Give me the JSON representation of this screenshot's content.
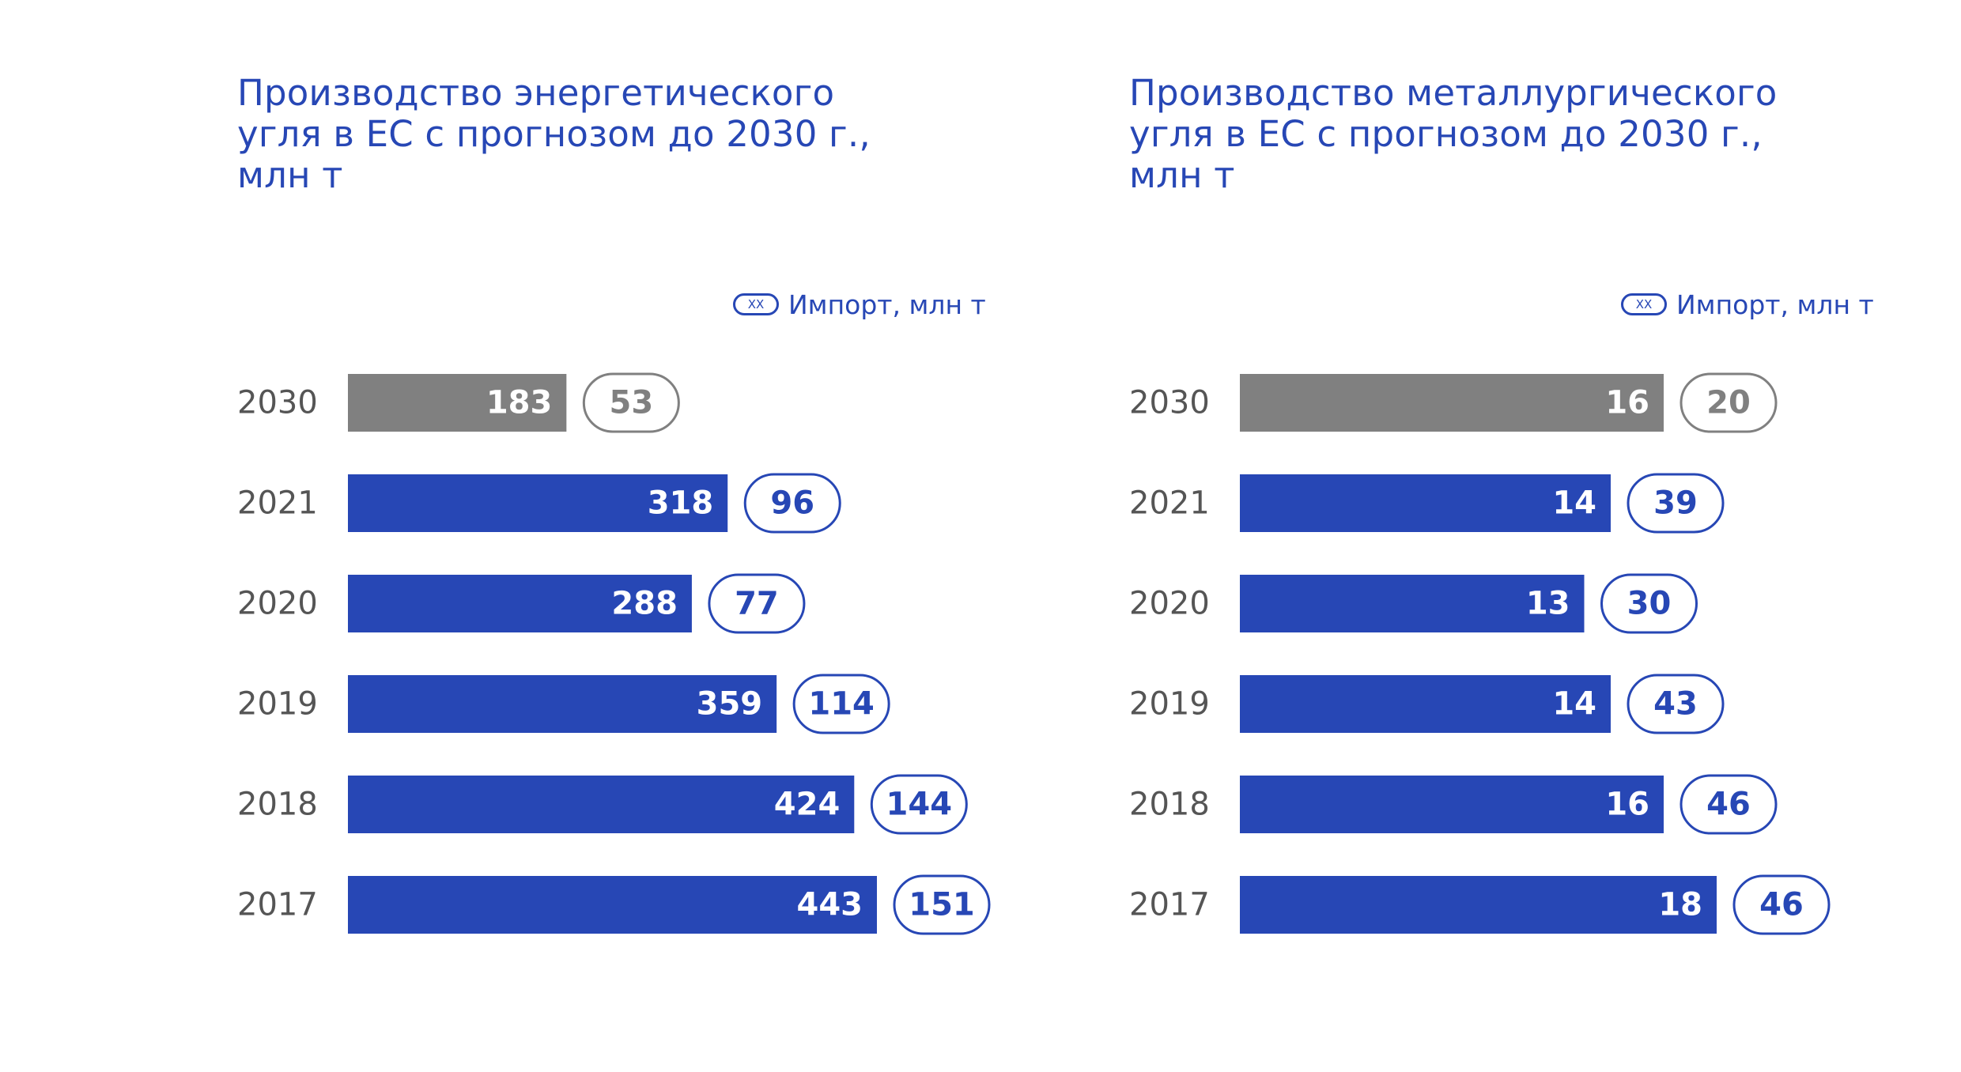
{
  "colors": {
    "accent": "#2747b5",
    "forecast": "#808080",
    "forecast_outline": "#808080",
    "year_text": "#555555"
  },
  "chart_data": [
    {
      "type": "bar",
      "orientation": "horizontal",
      "title_lines": [
        "Производство энергетического",
        "угля в ЕС с прогнозом до 2030 г.,",
        "млн т"
      ],
      "legend_symbol": "XX",
      "legend_label": "Импорт, млн т",
      "categories": [
        "2030",
        "2021",
        "2020",
        "2019",
        "2018",
        "2017"
      ],
      "values": [
        183,
        318,
        288,
        359,
        424,
        443
      ],
      "import_values": [
        53,
        96,
        77,
        114,
        144,
        151
      ],
      "forecast_category": "2030",
      "xlim": [
        0,
        443
      ]
    },
    {
      "type": "bar",
      "orientation": "horizontal",
      "title_lines": [
        "Производство металлургического",
        "угля в ЕС с прогнозом до 2030 г.,",
        "млн т"
      ],
      "legend_symbol": "XX",
      "legend_label": "Импорт, млн т",
      "categories": [
        "2030",
        "2021",
        "2020",
        "2019",
        "2018",
        "2017"
      ],
      "values": [
        16,
        14,
        13,
        14,
        16,
        18
      ],
      "import_values": [
        20,
        39,
        30,
        43,
        46,
        46
      ],
      "forecast_category": "2030",
      "xlim": [
        0,
        18
      ]
    }
  ]
}
